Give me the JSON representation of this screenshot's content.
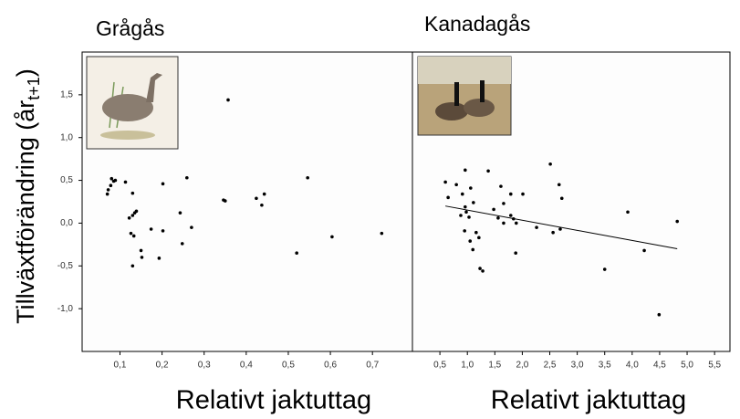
{
  "chart_data": [
    {
      "type": "scatter",
      "title": "Grågås",
      "xlabel": "Relativt jaktuttag",
      "ylabel": "Tillväxtförändring (år",
      "ylabel_sub": "t+1",
      "ylabel_end": ")",
      "xlim": [
        0.01,
        0.795
      ],
      "ylim": [
        -1.5,
        2.0
      ],
      "xticks": [
        {
          "value": 0.1,
          "label": "0,1"
        },
        {
          "value": 0.2,
          "label": "0,2"
        },
        {
          "value": 0.3,
          "label": "0,3"
        },
        {
          "value": 0.4,
          "label": "0,4"
        },
        {
          "value": 0.5,
          "label": "0,5"
        },
        {
          "value": 0.6,
          "label": "0,6"
        },
        {
          "value": 0.7,
          "label": "0,7"
        }
      ],
      "yticks": [
        {
          "value": -1.0,
          "label": "-1,0"
        },
        {
          "value": -0.5,
          "label": "-0,5"
        },
        {
          "value": 0.0,
          "label": "0,0"
        },
        {
          "value": 0.5,
          "label": "0,5"
        },
        {
          "value": 1.0,
          "label": "1,0"
        },
        {
          "value": 1.5,
          "label": "1,5"
        }
      ],
      "color": "#000000",
      "x": [
        0.072,
        0.08,
        0.085,
        0.089,
        0.07,
        0.078,
        0.113,
        0.13,
        0.122,
        0.13,
        0.135,
        0.139,
        0.126,
        0.133,
        0.13,
        0.15,
        0.152,
        0.174,
        0.193,
        0.202,
        0.202,
        0.243,
        0.248,
        0.259,
        0.27,
        0.346,
        0.35,
        0.357,
        0.424,
        0.437,
        0.443,
        0.52,
        0.546,
        0.604,
        0.722
      ],
      "y": [
        0.39,
        0.52,
        0.49,
        0.5,
        0.34,
        0.44,
        0.48,
        0.35,
        0.06,
        0.09,
        0.12,
        0.14,
        -0.12,
        -0.15,
        -0.5,
        -0.32,
        -0.4,
        -0.07,
        -0.41,
        0.46,
        -0.09,
        0.12,
        -0.24,
        0.53,
        -0.05,
        0.27,
        0.26,
        1.44,
        0.29,
        0.21,
        0.34,
        -0.35,
        0.53,
        -0.16,
        -0.12
      ]
    },
    {
      "type": "scatter",
      "title": "Kanadagås",
      "xlabel": "Relativt jaktuttag",
      "xlim": [
        0.0,
        5.78
      ],
      "ylim": [
        -1.5,
        2.0
      ],
      "xticks": [
        {
          "value": 0.5,
          "label": "0,5"
        },
        {
          "value": 1.0,
          "label": "1,0"
        },
        {
          "value": 1.5,
          "label": "1,5"
        },
        {
          "value": 2.0,
          "label": "2,0"
        },
        {
          "value": 2.5,
          "label": "2,5"
        },
        {
          "value": 3.0,
          "label": "3,0"
        },
        {
          "value": 3.5,
          "label": "3,5"
        },
        {
          "value": 4.0,
          "label": "4,0"
        },
        {
          "value": 4.5,
          "label": "4,5"
        },
        {
          "value": 5.0,
          "label": "5,0"
        },
        {
          "value": 5.5,
          "label": "5,5"
        }
      ],
      "color": "#000000",
      "x": [
        0.6,
        0.65,
        0.8,
        0.96,
        0.91,
        0.96,
        0.98,
        1.03,
        0.88,
        1.06,
        1.11,
        0.95,
        1.05,
        1.1,
        1.21,
        1.16,
        1.23,
        1.28,
        1.38,
        1.48,
        1.56,
        1.61,
        1.66,
        1.66,
        1.79,
        1.79,
        1.84,
        1.88,
        1.89,
        2.01,
        2.26,
        2.51,
        2.56,
        2.67,
        2.72,
        2.69,
        3.5,
        3.92,
        4.22,
        4.82,
        4.49
      ],
      "y": [
        0.48,
        0.3,
        0.45,
        0.62,
        0.34,
        0.19,
        0.13,
        0.07,
        0.09,
        0.41,
        0.24,
        -0.09,
        -0.21,
        -0.31,
        -0.17,
        -0.11,
        -0.53,
        -0.56,
        0.61,
        0.16,
        0.06,
        0.43,
        0.23,
        0.0,
        0.34,
        0.09,
        0.05,
        -0.35,
        0.0,
        0.34,
        -0.05,
        0.69,
        -0.11,
        0.45,
        0.29,
        -0.07,
        -0.54,
        0.13,
        -0.32,
        0.02,
        -1.07
      ],
      "trendline": {
        "x": [
          0.6,
          4.82
        ],
        "y": [
          0.2,
          -0.3
        ]
      }
    }
  ]
}
